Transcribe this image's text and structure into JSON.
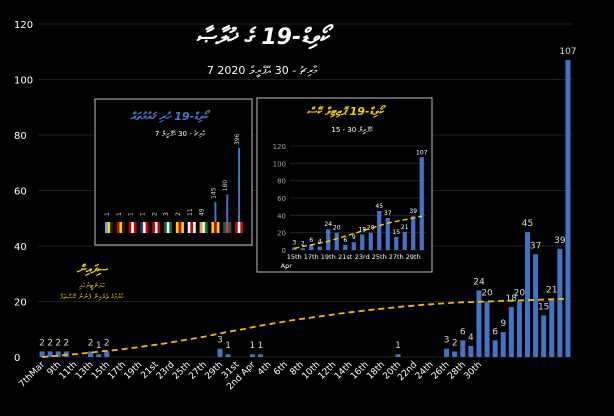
{
  "chart_data": [
    {
      "type": "bar",
      "title": "ކޯވިޑް-19 ގެ ޚުލާޞާ",
      "subtitle": "7 މާރިޗު - 30 އޭޕްރީލް 2020",
      "y_tick_labels": [
        "0",
        "20",
        "40",
        "60",
        "80",
        "100",
        "120"
      ],
      "ylim": [
        0,
        120
      ],
      "grid": true,
      "x_tick_labels": [
        "7thMar",
        "9th",
        "11th",
        "13th",
        "15th",
        "17th",
        "19th",
        "21st",
        "23rd",
        "25th",
        "27th",
        "29th",
        "31st",
        "2nd Apr",
        "4th",
        "6th",
        "8th",
        "10th",
        "12th",
        "14th",
        "16th",
        "18th",
        "20th",
        "22nd",
        "24th",
        "26th",
        "28th",
        "30th"
      ],
      "series": [
        {
          "name": "cases",
          "color": "#4472C4",
          "values": [
            2,
            2,
            2,
            2,
            0,
            0,
            2,
            1,
            2,
            0,
            0,
            0,
            0,
            0,
            0,
            0,
            0,
            0,
            0,
            0,
            0,
            0,
            3,
            1,
            0,
            0,
            1,
            1,
            0,
            0,
            0,
            0,
            0,
            0,
            0,
            0,
            0,
            0,
            0,
            0,
            0,
            0,
            0,
            0,
            1,
            0,
            0,
            0,
            0,
            0,
            3,
            2,
            6,
            4,
            24,
            20,
            6,
            9,
            18,
            20,
            45,
            37,
            15,
            21,
            39,
            107
          ],
          "labels": [
            "2",
            "2",
            "2",
            "2",
            "",
            "",
            "2",
            "1",
            "2",
            "",
            "",
            "",
            "",
            "",
            "",
            "",
            "",
            "",
            "",
            "",
            "",
            "",
            "3",
            "1",
            "",
            "",
            "1",
            "1",
            "",
            "",
            "",
            "",
            "",
            "",
            "",
            "",
            "",
            "",
            "",
            "",
            "",
            "",
            "",
            "",
            "1",
            "",
            "",
            "",
            "",
            "",
            "3",
            "2",
            "6",
            "4",
            "24",
            "20",
            "6",
            "9",
            "18",
            "20",
            "45",
            "37",
            "15",
            "21",
            "39",
            "107"
          ]
        },
        {
          "name": "trend",
          "color": "#F5B800",
          "style": "dashed",
          "values": [
            0,
            0.2,
            0.5,
            0.8,
            1.0,
            1.3,
            1.6,
            1.9,
            2.2,
            2.5,
            2.8,
            3.2,
            3.6,
            4.0,
            4.4,
            4.8,
            5.3,
            5.8,
            6.3,
            6.8,
            7.3,
            7.9,
            8.5,
            9.1,
            9.6,
            10.1,
            10.7,
            11.3,
            11.8,
            12.3,
            12.8,
            13.3,
            13.7,
            14.1,
            14.5,
            14.9,
            15.3,
            15.7,
            16.1,
            16.4,
            16.8,
            17.1,
            17.4,
            17.7,
            18.0,
            18.3,
            18.5,
            18.8,
            19.0,
            19.2,
            19.4,
            19.6,
            19.7,
            19.8,
            19.9,
            20.0,
            20.1,
            20.2,
            20.3,
            20.4,
            20.5,
            20.6,
            20.7,
            20.8,
            20.9,
            21.0
          ]
        }
      ],
      "annotation_title": "ސިފައިން",
      "annotation_lines": [
        "ކަރަންޓީނުގައި",
        "ހުރުމުގެ ތެރެއިން ފެނުނު ކޭސްތައް"
      ]
    },
    {
      "type": "bar",
      "title": "ކޯވިޑް-19 ހުރި ޤައުމުތައް",
      "subtitle": "7 މާރިޗު - 30 އޭޕްރީލް",
      "values": [
        1,
        1,
        1,
        1,
        2,
        3,
        2,
        11,
        49,
        145,
        180,
        396
      ],
      "labels": [
        "1",
        "1",
        "1",
        "1",
        "2",
        "3",
        "2",
        "11",
        "49",
        "145",
        "180",
        "396"
      ],
      "flags": [
        [
          "#6aa6d8",
          "#ffd400",
          "#222222"
        ],
        [
          "#cc0000",
          "#ffcc00",
          "#222222"
        ],
        [
          "#cc0000",
          "#ffffff",
          "#cc0000"
        ],
        [
          "#1f3a8a",
          "#ffffff",
          "#cc0000"
        ],
        [
          "#cc0000",
          "#ffffff",
          "#cc0000"
        ],
        [
          "#0a6b2e",
          "#ffffff",
          "#0a6b2e"
        ],
        [
          "#ffcc00",
          "#cc0000",
          "#ffcc00"
        ],
        [
          "#ffffff",
          "#cc0000",
          "#ffffff"
        ],
        [
          "#ff9933",
          "#ffffff",
          "#138808"
        ],
        [
          "#ffcc00",
          "#cc0000",
          "#ffcc00"
        ],
        [
          "#006a4e",
          "#f42a41",
          "#006a4e"
        ],
        [
          "#cc0000",
          "#ffffff",
          "#cc0000"
        ]
      ]
    },
    {
      "type": "bar",
      "title": "ކޯވިޑް-19 ޕޮޒިޓިވް ކޭސް",
      "subtitle": "15 - 30 އޭޕްރީލް",
      "y_tick_labels": [
        "0",
        "20",
        "40",
        "60",
        "80",
        "100",
        "120"
      ],
      "ylim": [
        0,
        120
      ],
      "grid": true,
      "x_tick_labels": [
        "15th Apr",
        "17th",
        "19th",
        "21st",
        "23rd",
        "25th",
        "27th",
        "29th"
      ],
      "series": [
        {
          "name": "cases",
          "color": "#4472C4",
          "values": [
            3,
            2,
            6,
            4,
            24,
            20,
            6,
            9,
            18,
            20,
            45,
            37,
            15,
            21,
            39,
            107
          ],
          "labels": [
            "3",
            "2",
            "6",
            "4",
            "24",
            "20",
            "6",
            "9",
            "18",
            "20",
            "45",
            "37",
            "15",
            "21",
            "39",
            "107"
          ]
        },
        {
          "name": "trend",
          "color": "#F5D000",
          "style": "dashed",
          "values": [
            2,
            4,
            6,
            8,
            10,
            13,
            16,
            19,
            22,
            25,
            28,
            31,
            33,
            35,
            37,
            39
          ]
        }
      ]
    }
  ]
}
